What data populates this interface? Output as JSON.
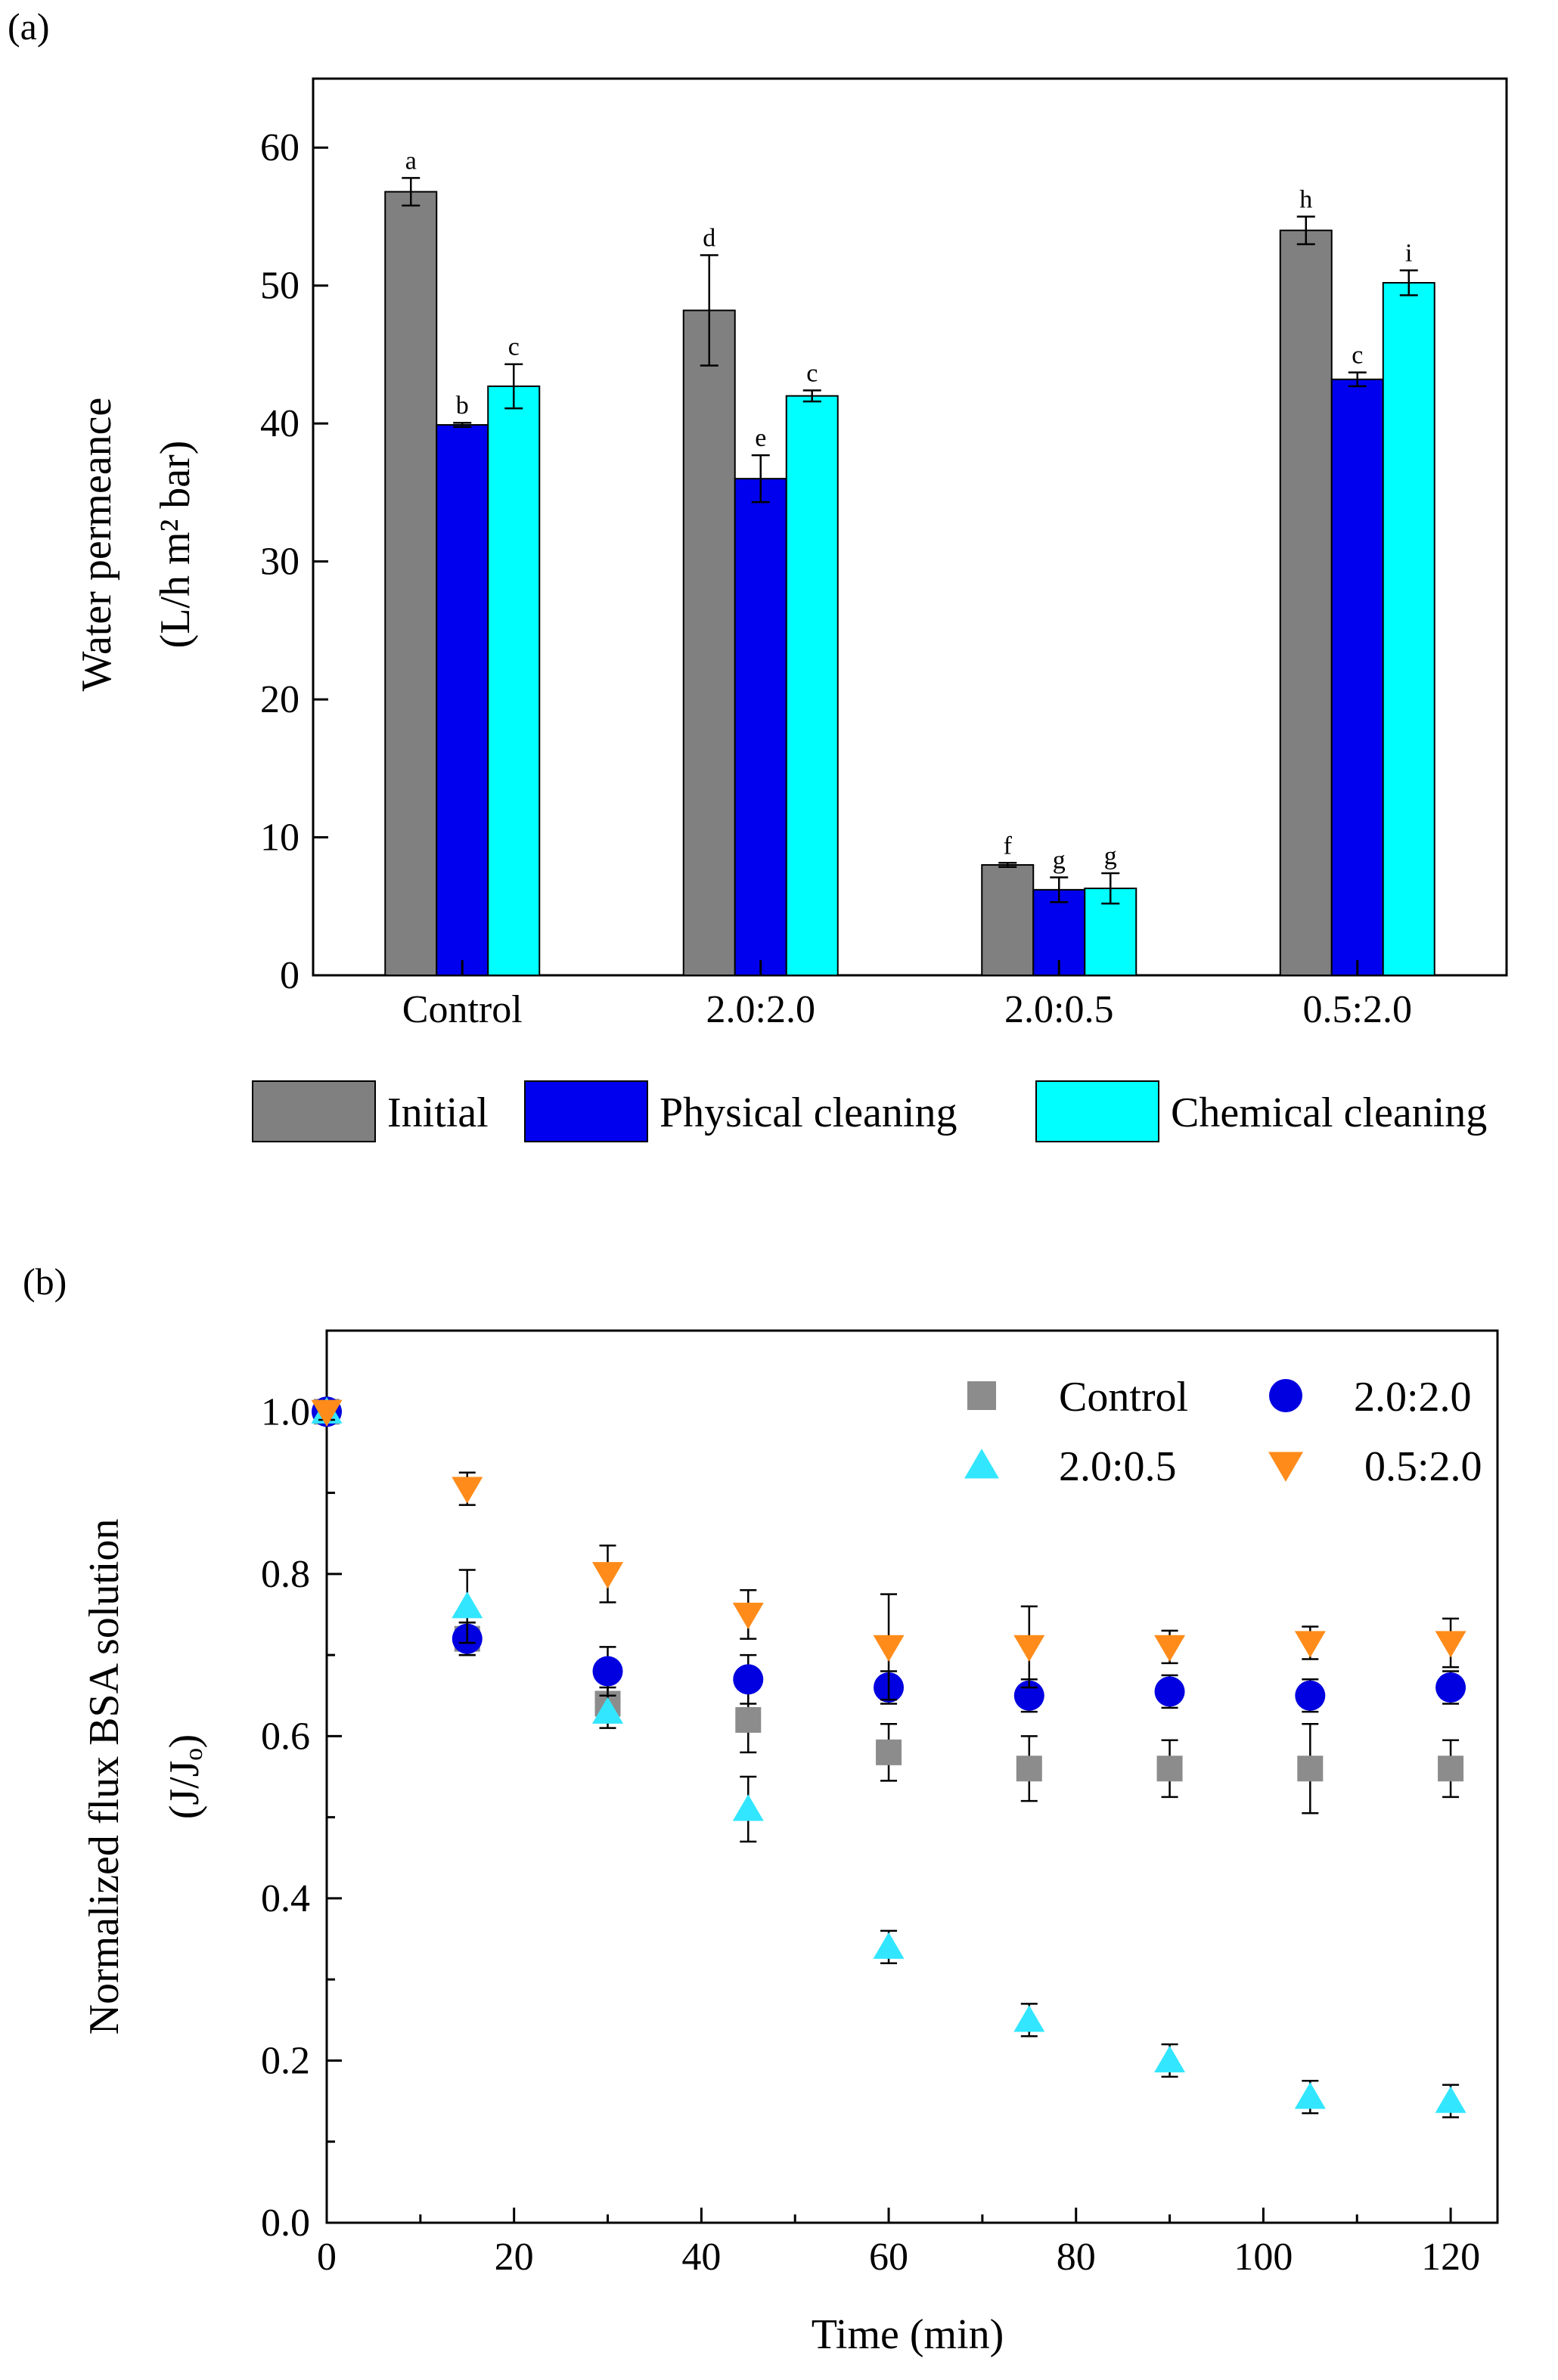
{
  "colors": {
    "initial": "#808080",
    "physical": "#0000ee",
    "chemical": "#00ffff",
    "control_marker": "#8c8c8c",
    "r2020_marker": "#0000e0",
    "r2005_marker": "#33e6ff",
    "r0520_marker": "#ff8c1a"
  },
  "chart_data": [
    {
      "panel": "(a)",
      "type": "bar",
      "xlabel": "",
      "ylabel": "Water permeance",
      "ylabel_units": "(L/h m² bar)",
      "ylim": [
        0,
        65
      ],
      "yticks": [
        0,
        10,
        20,
        30,
        40,
        50,
        60
      ],
      "categories": [
        "Control",
        "2.0:2.0",
        "2.0:0.5",
        "0.5:2.0"
      ],
      "series": [
        {
          "name": "Initial",
          "color_key": "initial",
          "values": [
            56.8,
            48.2,
            8.0,
            54.0
          ],
          "errors": [
            1.0,
            4.0,
            0.15,
            1.0
          ],
          "letters": [
            "a",
            "d",
            "f",
            "h"
          ]
        },
        {
          "name": "Physical cleaning",
          "color_key": "physical",
          "values": [
            39.9,
            36.0,
            6.2,
            43.2
          ],
          "errors": [
            0.15,
            1.7,
            0.9,
            0.5
          ],
          "letters": [
            "b",
            "e",
            "g",
            "c"
          ]
        },
        {
          "name": "Chemical cleaning",
          "color_key": "chemical",
          "values": [
            42.7,
            42.0,
            6.3,
            50.2
          ],
          "errors": [
            1.6,
            0.4,
            1.1,
            0.9
          ],
          "letters": [
            "c",
            "c",
            "g",
            "i"
          ]
        }
      ],
      "legend": [
        "Initial",
        "Physical cleaning",
        "Chemical cleaning"
      ]
    },
    {
      "panel": "(b)",
      "type": "scatter",
      "xlabel": "Time (min)",
      "ylabel": "Normalized flux BSA solution",
      "ylabel_units": "(J/Jₒ)",
      "xlim": [
        0,
        125
      ],
      "ylim": [
        0,
        1.1
      ],
      "xticks": [
        0,
        20,
        40,
        60,
        80,
        100,
        120
      ],
      "yticks": [
        "0.0",
        "0.2",
        "0.4",
        "0.6",
        "0.8",
        "1.0"
      ],
      "x": [
        0,
        15,
        30,
        45,
        60,
        75,
        90,
        105,
        120
      ],
      "series": [
        {
          "name": "Control",
          "marker": "square",
          "color_key": "control_marker",
          "values": [
            1.0,
            0.72,
            0.64,
            0.62,
            0.58,
            0.56,
            0.56,
            0.56,
            0.56
          ],
          "errors": [
            0.01,
            0.02,
            0.02,
            0.04,
            0.035,
            0.04,
            0.035,
            0.055,
            0.035
          ]
        },
        {
          "name": "2.0:2.0",
          "marker": "circle",
          "color_key": "r2020_marker",
          "values": [
            1.0,
            0.72,
            0.68,
            0.67,
            0.66,
            0.65,
            0.655,
            0.65,
            0.66
          ],
          "errors": [
            0.01,
            0.02,
            0.03,
            0.03,
            0.02,
            0.02,
            0.02,
            0.02,
            0.02
          ]
        },
        {
          "name": "2.0:0.5",
          "marker": "triangle-up",
          "color_key": "r2005_marker",
          "values": [
            1.0,
            0.76,
            0.63,
            0.51,
            0.34,
            0.25,
            0.2,
            0.155,
            0.15
          ],
          "errors": [
            0.01,
            0.045,
            0.02,
            0.04,
            0.02,
            0.02,
            0.02,
            0.02,
            0.02
          ]
        },
        {
          "name": "0.5:2.0",
          "marker": "triangle-down",
          "color_key": "r0520_marker",
          "values": [
            1.0,
            0.905,
            0.8,
            0.75,
            0.71,
            0.71,
            0.71,
            0.715,
            0.715
          ],
          "errors": [
            0.01,
            0.02,
            0.035,
            0.03,
            0.065,
            0.05,
            0.02,
            0.02,
            0.03
          ]
        }
      ],
      "legend": [
        "Control",
        "2.0:2.0",
        "2.0:0.5",
        "0.5:2.0"
      ]
    }
  ]
}
